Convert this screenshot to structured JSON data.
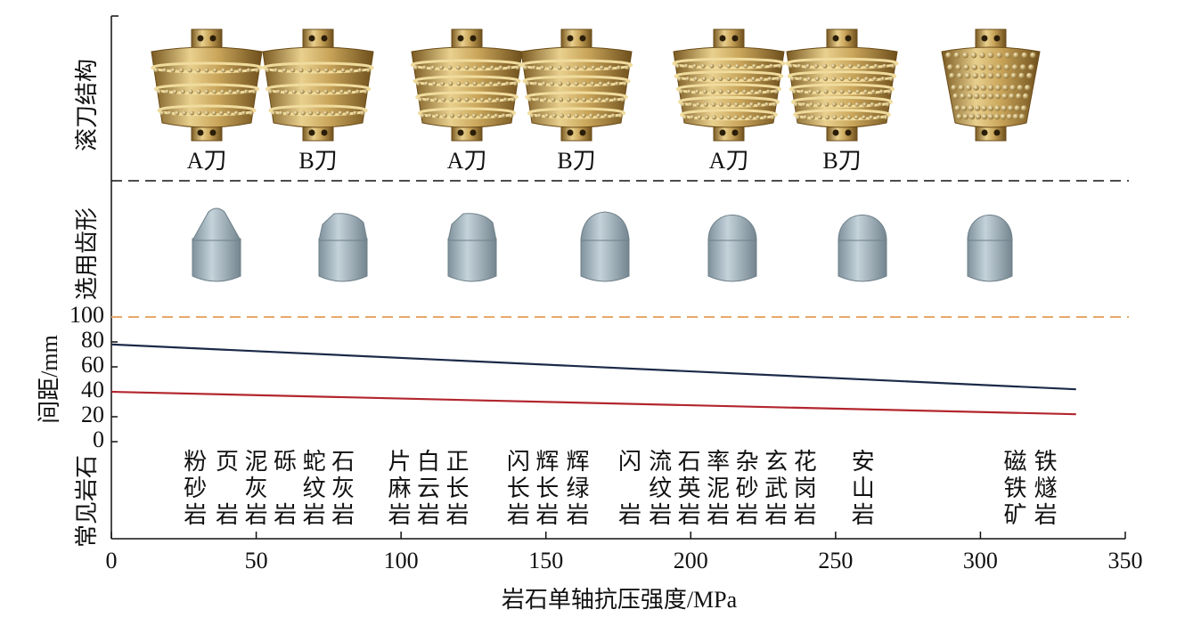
{
  "chart_data": {
    "type": "line",
    "x_label": "岩石单轴抗压强度/MPa",
    "y_label": "间距/mm",
    "x": [
      0,
      333
    ],
    "series": [
      {
        "color": "#1c2a48",
        "values": [
          78,
          42
        ]
      },
      {
        "color": "#b3262e",
        "values": [
          40,
          22
        ]
      }
    ],
    "xlim": [
      0,
      350
    ],
    "xticks": [
      0,
      50,
      100,
      150,
      200,
      250,
      300,
      350
    ],
    "ylim": [
      0,
      100
    ],
    "yticks": [
      0,
      20,
      40,
      60,
      80,
      100
    ],
    "reference_line": {
      "value": 100,
      "color": "#e8a868"
    },
    "rows": {
      "cutter": "滚刀结构",
      "tooth": "选用齿形",
      "rock": "常见岩石"
    },
    "cutter_labels": [
      "A刀",
      "B刀",
      "A刀",
      "B刀",
      "A刀",
      "B刀"
    ],
    "rocks": [
      {
        "x": 29,
        "lines": [
          "粉",
          "砂",
          "岩"
        ]
      },
      {
        "x": 40,
        "lines": [
          "页",
          null,
          "岩"
        ]
      },
      {
        "x": 50,
        "lines": [
          "泥",
          "灰",
          "岩"
        ]
      },
      {
        "x": 60,
        "lines": [
          "砾",
          null,
          "岩"
        ]
      },
      {
        "x": 70,
        "lines": [
          "蛇",
          "纹",
          "岩"
        ]
      },
      {
        "x": 80,
        "lines": [
          "石",
          "灰",
          "岩"
        ]
      },
      {
        "x": 99.5,
        "lines": [
          "片",
          "麻",
          "岩"
        ]
      },
      {
        "x": 109.5,
        "lines": [
          "白",
          "云",
          "岩"
        ]
      },
      {
        "x": 119.5,
        "lines": [
          "正",
          "长",
          "岩"
        ]
      },
      {
        "x": 140.5,
        "lines": [
          "闪",
          "长",
          "岩"
        ]
      },
      {
        "x": 150.5,
        "lines": [
          "辉",
          "长",
          "岩"
        ]
      },
      {
        "x": 161,
        "lines": [
          "辉",
          "绿",
          "岩"
        ]
      },
      {
        "x": 179,
        "lines": [
          "闪",
          null,
          "岩"
        ]
      },
      {
        "x": 189.5,
        "lines": [
          "流",
          "纹",
          "岩"
        ]
      },
      {
        "x": 199.5,
        "lines": [
          "石",
          "英",
          "岩"
        ]
      },
      {
        "x": 209.5,
        "lines": [
          "率",
          "泥",
          "岩"
        ]
      },
      {
        "x": 219.5,
        "lines": [
          "杂",
          "砂",
          "岩"
        ]
      },
      {
        "x": 229.5,
        "lines": [
          "玄",
          "武",
          "岩"
        ]
      },
      {
        "x": 239.5,
        "lines": [
          "花",
          "岗",
          "岩"
        ]
      },
      {
        "x": 259.5,
        "lines": [
          "安",
          "山",
          "岩"
        ]
      },
      {
        "x": 312,
        "lines": [
          "磁",
          "铁",
          "矿"
        ]
      },
      {
        "x": 322.5,
        "lines": [
          "铁",
          "燧",
          "岩"
        ]
      }
    ]
  }
}
